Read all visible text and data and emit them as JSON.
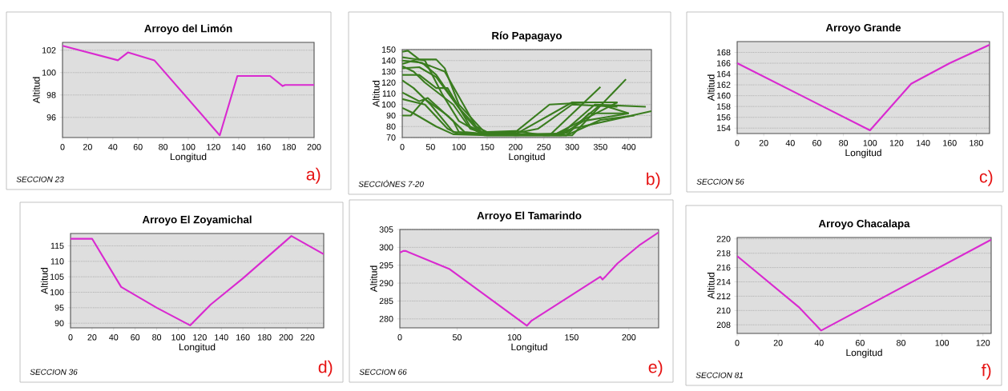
{
  "chart_data": [
    {
      "type": "line",
      "title": "Arroyo del Limón",
      "xlabel": "Longitud",
      "ylabel": "Altitud",
      "annotations": [
        "SECCION 23",
        "a)"
      ],
      "xlim": [
        0,
        200
      ],
      "ylim": [
        94.2,
        102.7
      ],
      "xticks": [
        0,
        20,
        40,
        60,
        80,
        100,
        120,
        140,
        160,
        180,
        200
      ],
      "yticks": [
        96,
        98,
        100,
        102
      ],
      "grid": "y",
      "color": "#d92ad0",
      "x": [
        0,
        44,
        52,
        73,
        125,
        139,
        165,
        175,
        177,
        200
      ],
      "values": [
        102.4,
        101.1,
        101.8,
        101.1,
        94.4,
        99.7,
        99.7,
        98.8,
        98.9,
        98.9
      ]
    },
    {
      "type": "line",
      "title": "Río Papagayo",
      "xlabel": "Longitud",
      "ylabel": "Altitud",
      "annotations": [
        "SECCIÓNES 7-20",
        "b)"
      ],
      "xlim": [
        0,
        440
      ],
      "ylim": [
        70,
        150
      ],
      "xticks": [
        0,
        50,
        100,
        150,
        200,
        250,
        300,
        350,
        400
      ],
      "yticks": [
        70,
        80,
        90,
        100,
        110,
        120,
        130,
        140,
        150
      ],
      "grid": "y",
      "series": [
        {
          "color": "#3a7d1f",
          "x": [
            0,
            10,
            30,
            60,
            75,
            100,
            145,
            200,
            260,
            330
          ],
          "values": [
            148,
            149,
            141,
            141,
            133,
            100,
            75,
            75,
            100,
            102
          ]
        },
        {
          "color": "#3a7d1f",
          "x": [
            0,
            40,
            70,
            100,
            145,
            260,
            350
          ],
          "values": [
            143,
            140,
            110,
            85,
            72,
            72,
            116
          ]
        },
        {
          "color": "#3a7d1f",
          "x": [
            0,
            20,
            50,
            75,
            130,
            150,
            200,
            250,
            300,
            395
          ],
          "values": [
            137,
            140,
            135,
            130,
            80,
            75,
            76,
            72,
            72,
            123
          ]
        },
        {
          "color": "#3a7d1f",
          "x": [
            0,
            30,
            60,
            80,
            120,
            150,
            270,
            380
          ],
          "values": [
            127,
            127,
            115,
            115,
            80,
            73,
            73,
            102
          ]
        },
        {
          "color": "#3a7d1f",
          "x": [
            0,
            20,
            50,
            90,
            150,
            280,
            340,
            430
          ],
          "values": [
            122,
            115,
            100,
            75,
            73,
            73,
            100,
            98
          ]
        },
        {
          "color": "#3a7d1f",
          "x": [
            0,
            30,
            45,
            90,
            100,
            150,
            290,
            330,
            395
          ],
          "values": [
            111,
            103,
            106,
            85,
            75,
            72,
            72,
            92,
            92
          ]
        },
        {
          "color": "#3a7d1f",
          "x": [
            0,
            40,
            80,
            100,
            150,
            270,
            300,
            440
          ],
          "values": [
            105,
            100,
            78,
            73,
            73,
            73,
            78,
            94
          ]
        },
        {
          "color": "#3a7d1f",
          "x": [
            0,
            20,
            60,
            90,
            150,
            280,
            320,
            400
          ],
          "values": [
            97,
            92,
            80,
            73,
            72,
            72,
            85,
            92
          ]
        },
        {
          "color": "#3a7d1f",
          "x": [
            0,
            15,
            40,
            80,
            110,
            150,
            290,
            350,
            410
          ],
          "values": [
            90,
            90,
            105,
            90,
            75,
            73,
            72,
            86,
            90
          ]
        },
        {
          "color": "#3a7d1f",
          "x": [
            0,
            30,
            60,
            110,
            140,
            200,
            240,
            300,
            380
          ],
          "values": [
            133,
            134,
            125,
            90,
            73,
            74,
            78,
            100,
            98
          ]
        },
        {
          "color": "#3a7d1f",
          "x": [
            0,
            20,
            40,
            90,
            120,
            150,
            200,
            300,
            380
          ],
          "values": [
            135,
            130,
            120,
            100,
            78,
            73,
            73,
            102,
            102
          ]
        },
        {
          "color": "#3a7d1f",
          "x": [
            0,
            35,
            60,
            100,
            140,
            200,
            290,
            350,
            400
          ],
          "values": [
            140,
            138,
            127,
            97,
            75,
            72,
            74,
            100,
            92
          ]
        }
      ]
    },
    {
      "type": "line",
      "title": "Arroyo Grande",
      "xlabel": "Longitud",
      "ylabel": "Altitud",
      "annotations": [
        "SECCION 56",
        "c)"
      ],
      "xlim": [
        0,
        190
      ],
      "ylim": [
        153,
        170
      ],
      "xticks": [
        0,
        20,
        40,
        60,
        80,
        100,
        120,
        140,
        160,
        180
      ],
      "yticks": [
        154,
        156,
        158,
        160,
        162,
        164,
        166,
        168
      ],
      "grid": "y",
      "color": "#d92ad0",
      "x": [
        0,
        100,
        131,
        160,
        190
      ],
      "values": [
        166,
        153.6,
        162.2,
        166,
        169.4
      ]
    },
    {
      "type": "line",
      "title": "Arroyo El Zoyamichal",
      "xlabel": "Longitud",
      "ylabel": "Altitud",
      "annotations": [
        "SECCION 36",
        "d)"
      ],
      "xlim": [
        0,
        235
      ],
      "ylim": [
        88.5,
        119
      ],
      "xticks": [
        0,
        20,
        40,
        60,
        80,
        100,
        120,
        140,
        160,
        180,
        200,
        220
      ],
      "yticks": [
        90,
        95,
        100,
        105,
        110,
        115
      ],
      "grid": "y",
      "color": "#d92ad0",
      "x": [
        0,
        20,
        47,
        80,
        111,
        130,
        160,
        205,
        235
      ],
      "values": [
        117.3,
        117.3,
        101.7,
        95,
        89.3,
        96,
        104.5,
        118.2,
        112.3
      ]
    },
    {
      "type": "line",
      "title": "Arroyo El Tamarindo",
      "xlabel": "Longitud",
      "ylabel": "Altitud",
      "annotations": [
        "SECCION 66",
        "e)"
      ],
      "xlim": [
        0,
        226
      ],
      "ylim": [
        277.5,
        305
      ],
      "xticks": [
        0,
        50,
        100,
        150,
        200
      ],
      "yticks": [
        280,
        285,
        290,
        295,
        300,
        305
      ],
      "grid": "y",
      "color": "#d92ad0",
      "x": [
        0,
        3,
        5,
        43,
        111,
        115,
        175,
        177,
        180,
        190,
        210,
        226
      ],
      "values": [
        298.5,
        299,
        299,
        294,
        278.1,
        279.5,
        291.8,
        291,
        292,
        295.5,
        300.8,
        304.2
      ]
    },
    {
      "type": "line",
      "title": "Arroyo Chacalapa",
      "xlabel": "Longitud",
      "ylabel": "Altitud",
      "annotations": [
        "SECCION 81",
        "f)"
      ],
      "xlim": [
        0,
        124
      ],
      "ylim": [
        206.8,
        220.2
      ],
      "xticks": [
        0,
        20,
        40,
        60,
        80,
        100,
        120
      ],
      "yticks": [
        208,
        210,
        212,
        214,
        216,
        218,
        220
      ],
      "grid": "y",
      "color": "#d92ad0",
      "x": [
        0,
        30,
        41,
        124
      ],
      "values": [
        217.6,
        210.5,
        207.2,
        219.9
      ]
    }
  ]
}
